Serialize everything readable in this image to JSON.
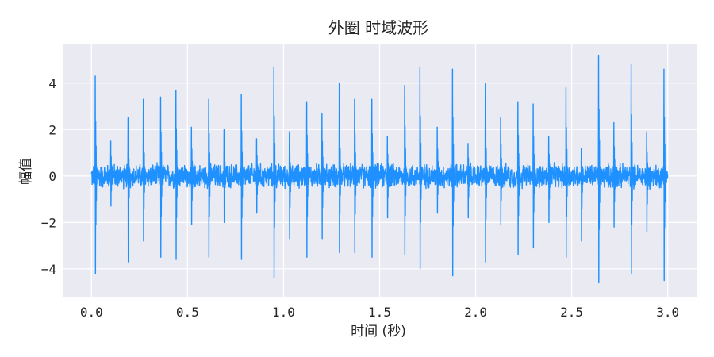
{
  "chart_data": {
    "type": "line",
    "title": "外圈 时域波形",
    "xlabel": "时间 (秒)",
    "ylabel": "幅值",
    "xlim": [
      -0.15,
      3.15
    ],
    "ylim": [
      -5.2,
      5.7
    ],
    "xticks": [
      0.0,
      0.5,
      1.0,
      1.5,
      2.0,
      2.5,
      3.0
    ],
    "xtick_labels": [
      "0.0",
      "0.5",
      "1.0",
      "1.5",
      "2.0",
      "2.5",
      "3.0"
    ],
    "yticks": [
      -4,
      -2,
      0,
      2,
      4
    ],
    "ytick_labels": [
      "−4",
      "−2",
      "0",
      "2",
      "4"
    ],
    "grid": true,
    "legend": "none",
    "colors": {
      "line": "#1e90ff",
      "plot_bg": "#eaeaf2",
      "grid": "#ffffff"
    },
    "series": [
      {
        "baseline_band": [
          -0.6,
          0.6
        ],
        "impulse_period": 0.0833,
        "impulses": [
          {
            "x": 0.02,
            "peak": 4.3,
            "trough": -4.2
          },
          {
            "x": 0.1,
            "peak": 1.5,
            "trough": -1.3
          },
          {
            "x": 0.19,
            "peak": 2.5,
            "trough": -3.7
          },
          {
            "x": 0.27,
            "peak": 3.3,
            "trough": -2.8
          },
          {
            "x": 0.36,
            "peak": 3.4,
            "trough": -3.5
          },
          {
            "x": 0.44,
            "peak": 3.7,
            "trough": -3.6
          },
          {
            "x": 0.52,
            "peak": 2.1,
            "trough": -2.1
          },
          {
            "x": 0.61,
            "peak": 3.3,
            "trough": -3.5
          },
          {
            "x": 0.69,
            "peak": 2.0,
            "trough": -2.0
          },
          {
            "x": 0.78,
            "peak": 3.5,
            "trough": -3.6
          },
          {
            "x": 0.86,
            "peak": 1.6,
            "trough": -1.6
          },
          {
            "x": 0.95,
            "peak": 4.7,
            "trough": -4.4
          },
          {
            "x": 1.03,
            "peak": 1.9,
            "trough": -2.7
          },
          {
            "x": 1.12,
            "peak": 3.2,
            "trough": -3.5
          },
          {
            "x": 1.2,
            "peak": 2.7,
            "trough": -2.7
          },
          {
            "x": 1.29,
            "peak": 4.0,
            "trough": -3.3
          },
          {
            "x": 1.37,
            "peak": 3.3,
            "trough": -3.3
          },
          {
            "x": 1.46,
            "peak": 3.3,
            "trough": -3.5
          },
          {
            "x": 1.54,
            "peak": 1.7,
            "trough": -1.8
          },
          {
            "x": 1.63,
            "peak": 3.9,
            "trough": -3.4
          },
          {
            "x": 1.71,
            "peak": 4.7,
            "trough": -4.0
          },
          {
            "x": 1.8,
            "peak": 2.1,
            "trough": -1.6
          },
          {
            "x": 1.88,
            "peak": 4.6,
            "trough": -4.3
          },
          {
            "x": 1.96,
            "peak": 1.4,
            "trough": -1.8
          },
          {
            "x": 2.05,
            "peak": 4.0,
            "trough": -3.7
          },
          {
            "x": 2.13,
            "peak": 2.5,
            "trough": -2.1
          },
          {
            "x": 2.22,
            "peak": 3.2,
            "trough": -3.4
          },
          {
            "x": 2.3,
            "peak": 3.1,
            "trough": -3.1
          },
          {
            "x": 2.38,
            "peak": 1.7,
            "trough": -2.0
          },
          {
            "x": 2.47,
            "peak": 3.8,
            "trough": -3.5
          },
          {
            "x": 2.55,
            "peak": 1.2,
            "trough": -2.8
          },
          {
            "x": 2.64,
            "peak": 5.2,
            "trough": -4.6
          },
          {
            "x": 2.72,
            "peak": 2.3,
            "trough": -2.2
          },
          {
            "x": 2.81,
            "peak": 4.8,
            "trough": -4.2
          },
          {
            "x": 2.89,
            "peak": 1.9,
            "trough": -2.4
          },
          {
            "x": 2.98,
            "peak": 4.6,
            "trough": -4.5
          }
        ]
      }
    ]
  }
}
